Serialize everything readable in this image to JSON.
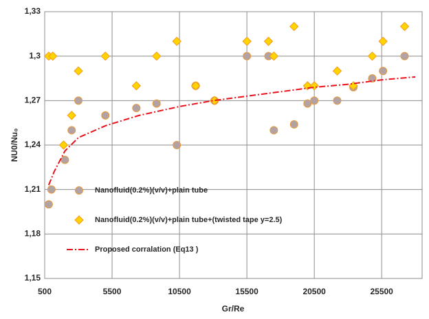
{
  "chart_data": {
    "type": "scatter",
    "xlabel": "Gr/Re",
    "ylabel": "NU0/Nu₀",
    "xlim": [
      500,
      28500
    ],
    "xticks": [
      500,
      5500,
      10500,
      15500,
      20500,
      25500
    ],
    "ylim": [
      1.15,
      1.33
    ],
    "yticks": [
      {
        "value": 1.15,
        "label": "1,15"
      },
      {
        "value": 1.18,
        "label": "1,18"
      },
      {
        "value": 1.21,
        "label": "1,21"
      },
      {
        "value": 1.24,
        "label": "1,24"
      },
      {
        "value": 1.27,
        "label": "1,27"
      },
      {
        "value": 1.3,
        "label": "1,3"
      },
      {
        "value": 1.33,
        "label": "1,33"
      }
    ],
    "grid": true,
    "legend": "center-left",
    "series": [
      {
        "name": "Nanofluid(0.2%)(v/v)+plain tube",
        "marker": "circle",
        "color": "#b3a2a4",
        "edge": "#e89a3c",
        "x": [
          800,
          1000,
          2000,
          2500,
          3000,
          5000,
          7300,
          8800,
          10300,
          11700,
          13100,
          15500,
          17100,
          17500,
          19000,
          20000,
          20500,
          22200,
          23400,
          24800,
          25600,
          27200
        ],
        "values": [
          1.2,
          1.21,
          1.23,
          1.25,
          1.27,
          1.26,
          1.265,
          1.268,
          1.24,
          1.28,
          1.27,
          1.3,
          1.3,
          1.25,
          1.254,
          1.268,
          1.27,
          1.27,
          1.279,
          1.285,
          1.29,
          1.3
        ]
      },
      {
        "name": "Nanofluid(0.2%)(v/v)+plain tube+(twisted tape y=2.5)",
        "marker": "diamond",
        "color": "#ffd400",
        "edge": "#f09a20",
        "x": [
          800,
          1100,
          1900,
          2500,
          3000,
          5000,
          7300,
          8800,
          10300,
          11700,
          13100,
          15500,
          17100,
          17500,
          19000,
          20000,
          20500,
          22200,
          23400,
          24800,
          25600,
          27200
        ],
        "values": [
          1.3,
          1.3,
          1.24,
          1.26,
          1.29,
          1.3,
          1.28,
          1.3,
          1.31,
          1.28,
          1.27,
          1.31,
          1.31,
          1.3,
          1.32,
          1.28,
          1.28,
          1.29,
          1.28,
          1.3,
          1.31,
          1.32
        ]
      },
      {
        "name": "Proposed corralation (Eq13  )",
        "marker": "dashdot",
        "color": "#e8101a",
        "x": [
          800,
          1200,
          2000,
          3000,
          5000,
          7500,
          10500,
          13000,
          15500,
          18000,
          20500,
          23000,
          25500,
          28000
        ],
        "values": [
          1.213,
          1.222,
          1.236,
          1.245,
          1.253,
          1.26,
          1.266,
          1.27,
          1.273,
          1.276,
          1.279,
          1.281,
          1.284,
          1.286
        ]
      }
    ]
  }
}
